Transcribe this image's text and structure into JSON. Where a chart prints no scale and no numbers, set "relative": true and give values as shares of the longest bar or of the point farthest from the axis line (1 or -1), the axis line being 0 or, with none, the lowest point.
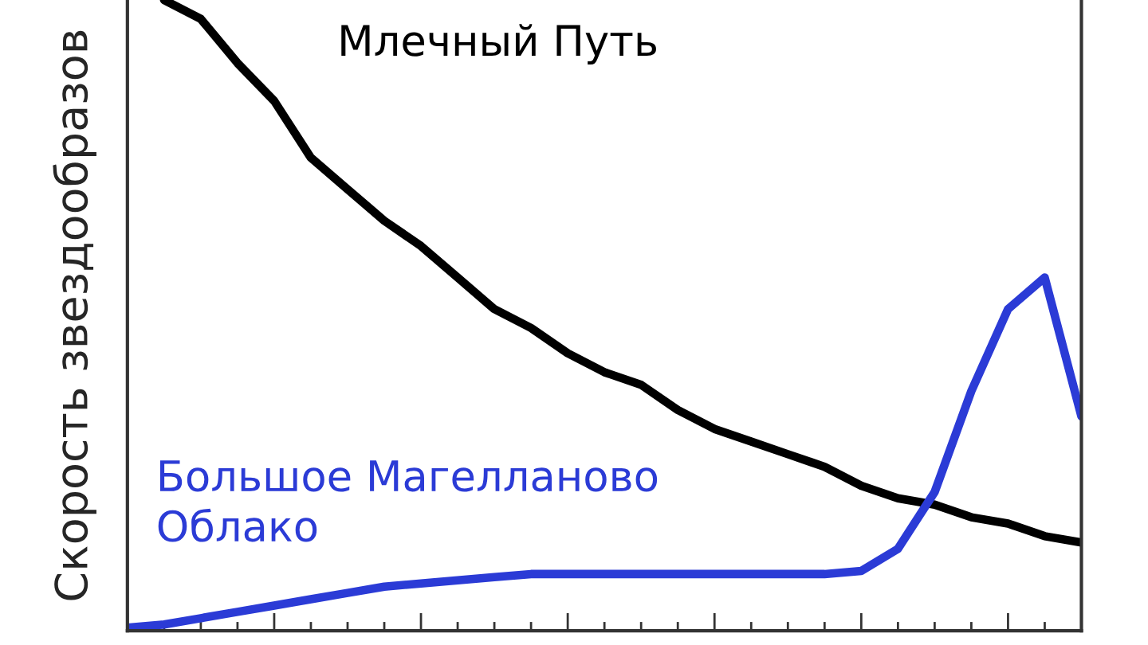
{
  "chart_data": {
    "type": "line",
    "relative": true,
    "ylabel": "Скорость звездообразов",
    "categories": [
      null,
      null,
      null,
      null,
      null,
      null,
      null,
      null,
      null,
      null,
      null,
      null,
      null,
      null,
      null,
      null,
      null,
      null,
      null,
      null,
      null,
      null,
      null,
      null,
      null,
      null,
      null
    ],
    "series": [
      {
        "name": "Млечный Путь",
        "color": "#000000",
        "values": [
          null,
          1.0,
          0.97,
          0.9,
          0.84,
          0.75,
          0.7,
          0.65,
          0.61,
          0.56,
          0.51,
          0.48,
          0.44,
          0.41,
          0.39,
          0.35,
          0.32,
          0.3,
          0.28,
          0.26,
          0.23,
          0.21,
          0.2,
          0.18,
          0.17,
          0.15,
          0.14
        ]
      },
      {
        "name": "Большое Магелланово\nОблако",
        "color": "#2b3bd6",
        "values": [
          0.005,
          0.01,
          0.02,
          0.03,
          0.04,
          0.05,
          0.06,
          0.07,
          0.075,
          0.08,
          0.085,
          0.09,
          0.09,
          0.09,
          0.09,
          0.09,
          0.09,
          0.09,
          0.09,
          0.09,
          0.095,
          0.13,
          0.22,
          0.38,
          0.51,
          0.56,
          0.34
        ]
      }
    ],
    "grid": false,
    "legend": false,
    "marker": "none",
    "line_style": "solid"
  }
}
